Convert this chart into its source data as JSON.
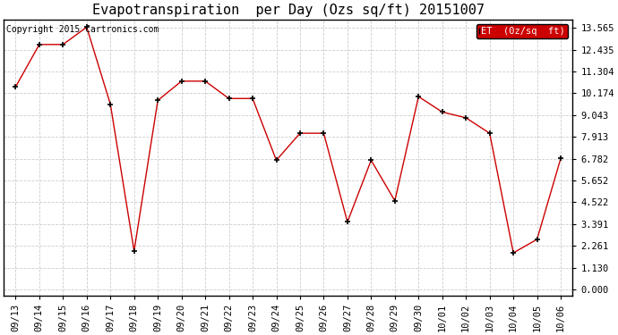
{
  "title": "Evapotranspiration  per Day (Ozs sq/ft) 20151007",
  "copyright": "Copyright 2015 Cartronics.com",
  "legend_label": "ET  (0z/sq  ft)",
  "x_labels": [
    "09/13",
    "09/14",
    "09/15",
    "09/16",
    "09/17",
    "09/18",
    "09/19",
    "09/20",
    "09/21",
    "09/22",
    "09/23",
    "09/24",
    "09/25",
    "09/26",
    "09/27",
    "09/28",
    "09/29",
    "09/30",
    "10/01",
    "10/02",
    "10/03",
    "10/04",
    "10/05",
    "10/06"
  ],
  "y_values": [
    10.5,
    12.7,
    12.7,
    13.6,
    9.6,
    2.0,
    9.8,
    10.8,
    10.8,
    9.9,
    9.9,
    6.7,
    8.1,
    8.1,
    3.5,
    6.7,
    4.6,
    10.0,
    9.2,
    8.9,
    8.1,
    1.9,
    2.6,
    6.8
  ],
  "line_color": "#CC0000",
  "marker_color": "#000000",
  "bg_color": "#ffffff",
  "grid_color": "#cccccc",
  "yticks": [
    0.0,
    1.13,
    2.261,
    3.391,
    4.522,
    5.652,
    6.782,
    7.913,
    9.043,
    10.174,
    11.304,
    12.435,
    13.565
  ],
  "ylim": [
    -0.3,
    14.0
  ],
  "legend_bg": "#CC0000",
  "legend_text_color": "#ffffff",
  "title_fontsize": 11,
  "axis_fontsize": 7.5,
  "copyright_fontsize": 7
}
